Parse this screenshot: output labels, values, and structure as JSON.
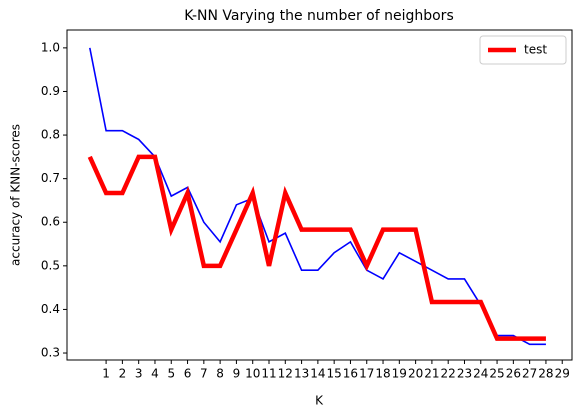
{
  "chart_data": {
    "type": "line",
    "title": "K-NN Varying the number of neighbors",
    "xlabel": "K",
    "ylabel": "accuracy of KNN-scores",
    "x": [
      0,
      1,
      2,
      3,
      4,
      5,
      6,
      7,
      8,
      9,
      10,
      11,
      12,
      13,
      14,
      15,
      16,
      17,
      18,
      19,
      20,
      21,
      22,
      23,
      24,
      25,
      26,
      27,
      28
    ],
    "series": [
      {
        "color": "#0000ff",
        "width": 1.6,
        "values": [
          1.0,
          0.81,
          0.81,
          0.79,
          0.75,
          0.66,
          0.68,
          0.6,
          0.555,
          0.64,
          0.655,
          0.555,
          0.575,
          0.49,
          0.49,
          0.53,
          0.555,
          0.49,
          0.47,
          0.53,
          0.51,
          0.49,
          0.47,
          0.47,
          0.41,
          0.34,
          0.34,
          0.32,
          0.32
        ]
      },
      {
        "name": "test",
        "color": "#ff0000",
        "width": 4.5,
        "values": [
          0.75,
          0.667,
          0.667,
          0.75,
          0.75,
          0.583,
          0.667,
          0.5,
          0.5,
          0.583,
          0.667,
          0.5,
          0.667,
          0.583,
          0.583,
          0.583,
          0.583,
          0.5,
          0.583,
          0.583,
          0.583,
          0.417,
          0.417,
          0.417,
          0.417,
          0.333,
          0.333,
          0.333,
          0.333
        ]
      }
    ],
    "xlim": [
      -1.4,
      29.6
    ],
    "ylim": [
      0.284,
      1.041
    ],
    "xticks": [
      1,
      2,
      3,
      4,
      5,
      6,
      7,
      8,
      9,
      10,
      11,
      12,
      13,
      14,
      15,
      16,
      17,
      18,
      19,
      20,
      21,
      22,
      23,
      24,
      25,
      26,
      27,
      28,
      29
    ],
    "yticks": [
      0.3,
      0.4,
      0.5,
      0.6,
      0.7,
      0.8,
      0.9,
      {
        "value": 1,
        "label": "1.0"
      }
    ],
    "legend": "upper right"
  }
}
